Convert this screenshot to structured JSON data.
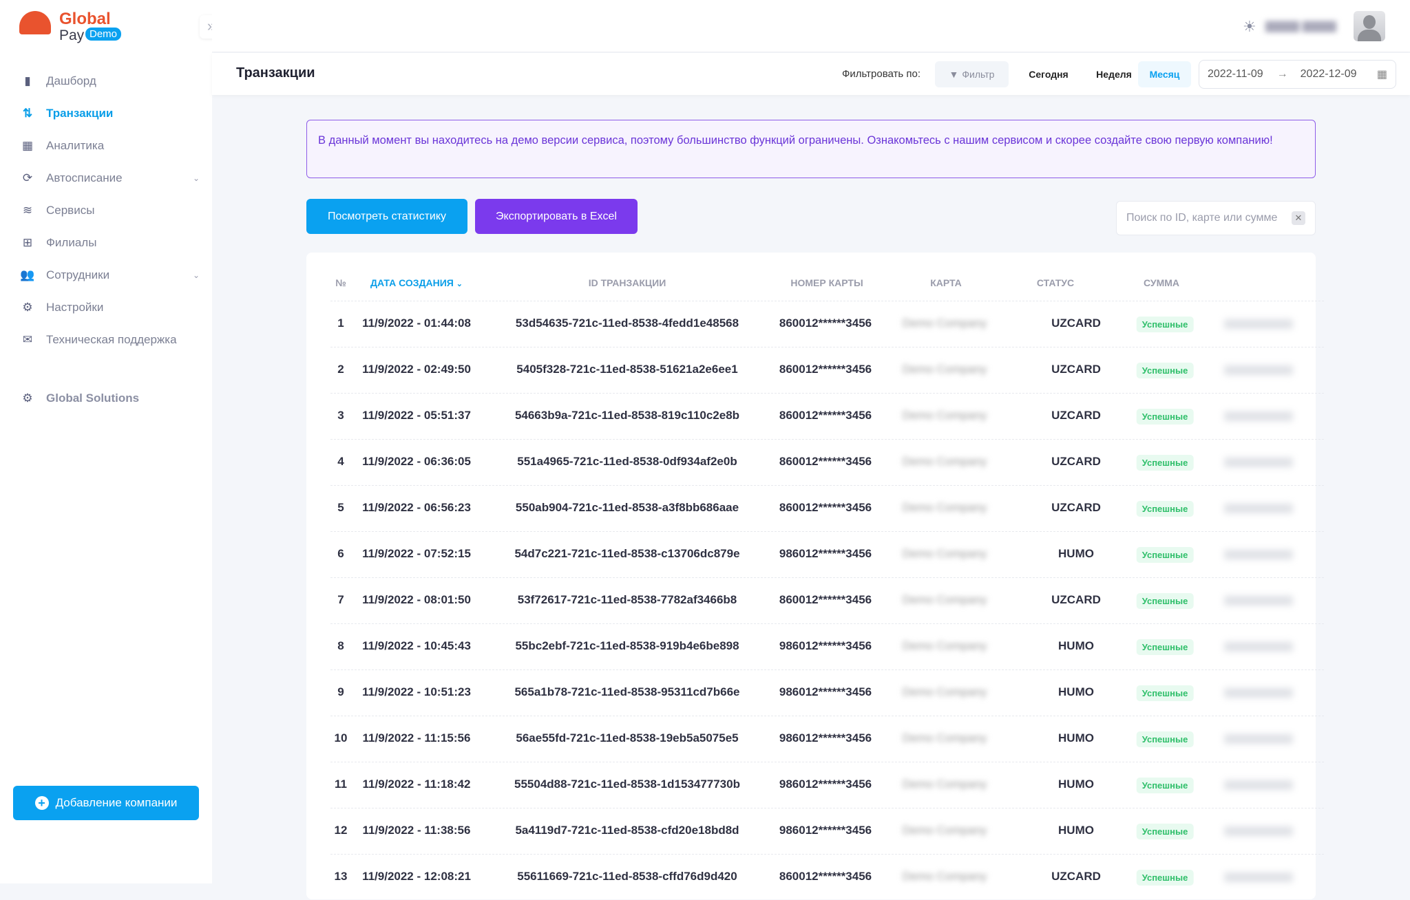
{
  "brand": {
    "name": "Global",
    "sub": "Pay",
    "badge": "Demo"
  },
  "sidebar": {
    "items": [
      {
        "label": "Дашборд",
        "icon": "bar-chart-icon"
      },
      {
        "label": "Транзакции",
        "icon": "transactions-icon",
        "active": true
      },
      {
        "label": "Аналитика",
        "icon": "calculator-icon"
      },
      {
        "label": "Автосписание",
        "icon": "refresh-folder-icon",
        "expandable": true
      },
      {
        "label": "Сервисы",
        "icon": "layers-icon"
      },
      {
        "label": "Филиалы",
        "icon": "branches-icon"
      },
      {
        "label": "Сотрудники",
        "icon": "people-icon",
        "expandable": true
      },
      {
        "label": "Настройки",
        "icon": "gear-icon"
      },
      {
        "label": "Техническая поддержка",
        "icon": "support-chat-icon"
      }
    ],
    "company": "Global Solutions",
    "add_company": "Добавление компании"
  },
  "header": {
    "title": "Транзакции",
    "filter_by": "Фильтровать по:",
    "filter": "Фильтр",
    "today": "Сегодня",
    "week": "Неделя",
    "month": "Месяц",
    "date_from": "2022-11-09",
    "date_to": "2022-12-09"
  },
  "banner": "В данный момент вы находитесь на демо версии сервиса, поэтому большинство функций ограничены. Ознакомьтесь с нашим сервисом и скорее создайте свою первую компанию!",
  "actions": {
    "stats": "Посмотреть статистику",
    "export": "Экспортировать в Excel",
    "search_placeholder": "Поиск по ID, карте или сумме"
  },
  "colors": {
    "accent": "#0aa1f0",
    "purple": "#7b3aed",
    "success": "#2fbf6a",
    "brand": "#e9532e"
  },
  "table": {
    "headers": {
      "num": "№",
      "date": "ДАТА СОЗДАНИЯ",
      "id": "ID ТРАНЗАКЦИИ",
      "card_no": "НОМЕР КАРТЫ",
      "card": "КАРТА",
      "status": "СТАТУС",
      "sum": "СУММА"
    },
    "rows": [
      {
        "n": "1",
        "date": "11/9/2022 - 01:44:08",
        "id": "53d54635-721c-11ed-8538-4fedd1e48568",
        "card_no": "860012******3456",
        "company": "Demo Company",
        "type": "UZCARD",
        "status": "Успешные"
      },
      {
        "n": "2",
        "date": "11/9/2022 - 02:49:50",
        "id": "5405f328-721c-11ed-8538-51621a2e6ee1",
        "card_no": "860012******3456",
        "company": "Demo Company",
        "type": "UZCARD",
        "status": "Успешные"
      },
      {
        "n": "3",
        "date": "11/9/2022 - 05:51:37",
        "id": "54663b9a-721c-11ed-8538-819c110c2e8b",
        "card_no": "860012******3456",
        "company": "Demo Company",
        "type": "UZCARD",
        "status": "Успешные"
      },
      {
        "n": "4",
        "date": "11/9/2022 - 06:36:05",
        "id": "551a4965-721c-11ed-8538-0df934af2e0b",
        "card_no": "860012******3456",
        "company": "Demo Company",
        "type": "UZCARD",
        "status": "Успешные"
      },
      {
        "n": "5",
        "date": "11/9/2022 - 06:56:23",
        "id": "550ab904-721c-11ed-8538-a3f8bb686aae",
        "card_no": "860012******3456",
        "company": "Demo Company",
        "type": "UZCARD",
        "status": "Успешные"
      },
      {
        "n": "6",
        "date": "11/9/2022 - 07:52:15",
        "id": "54d7c221-721c-11ed-8538-c13706dc879e",
        "card_no": "986012******3456",
        "company": "Demo Company",
        "type": "HUMO",
        "status": "Успешные"
      },
      {
        "n": "7",
        "date": "11/9/2022 - 08:01:50",
        "id": "53f72617-721c-11ed-8538-7782af3466b8",
        "card_no": "860012******3456",
        "company": "Demo Company",
        "type": "UZCARD",
        "status": "Успешные"
      },
      {
        "n": "8",
        "date": "11/9/2022 - 10:45:43",
        "id": "55bc2ebf-721c-11ed-8538-919b4e6be898",
        "card_no": "986012******3456",
        "company": "Demo Company",
        "type": "HUMO",
        "status": "Успешные"
      },
      {
        "n": "9",
        "date": "11/9/2022 - 10:51:23",
        "id": "565a1b78-721c-11ed-8538-95311cd7b66e",
        "card_no": "986012******3456",
        "company": "Demo Company",
        "type": "HUMO",
        "status": "Успешные"
      },
      {
        "n": "10",
        "date": "11/9/2022 - 11:15:56",
        "id": "56ae55fd-721c-11ed-8538-19eb5a5075e5",
        "card_no": "986012******3456",
        "company": "Demo Company",
        "type": "HUMO",
        "status": "Успешные"
      },
      {
        "n": "11",
        "date": "11/9/2022 - 11:18:42",
        "id": "55504d88-721c-11ed-8538-1d153477730b",
        "card_no": "986012******3456",
        "company": "Demo Company",
        "type": "HUMO",
        "status": "Успешные"
      },
      {
        "n": "12",
        "date": "11/9/2022 - 11:38:56",
        "id": "5a4119d7-721c-11ed-8538-cfd20e18bd8d",
        "card_no": "986012******3456",
        "company": "Demo Company",
        "type": "HUMO",
        "status": "Успешные"
      },
      {
        "n": "13",
        "date": "11/9/2022 - 12:08:21",
        "id": "55611669-721c-11ed-8538-cffd76d9d420",
        "card_no": "860012******3456",
        "company": "Demo Company",
        "type": "UZCARD",
        "status": "Успешные"
      }
    ]
  }
}
